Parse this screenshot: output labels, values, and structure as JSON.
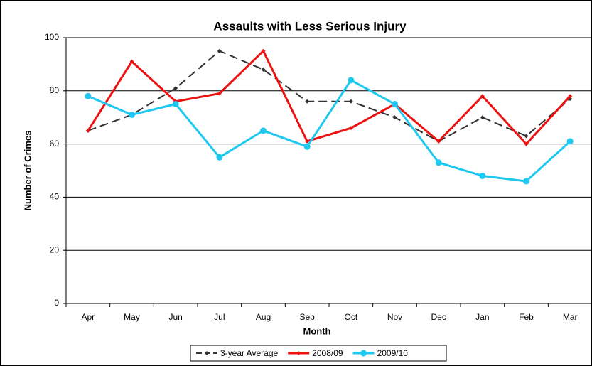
{
  "chart_data": {
    "type": "line",
    "title": "Assaults with Less Serious Injury",
    "x_label": "Month",
    "y_label": "Number of Crimes",
    "categories": [
      "Apr",
      "May",
      "Jun",
      "Jul",
      "Aug",
      "Sep",
      "Oct",
      "Nov",
      "Dec",
      "Jan",
      "Feb",
      "Mar"
    ],
    "series": [
      {
        "name": "3-year Average",
        "color": "#333333",
        "dashed": true,
        "marker": "diamond",
        "values": [
          65,
          71,
          81,
          95,
          88,
          76,
          76,
          70,
          61,
          70,
          63,
          77
        ]
      },
      {
        "name": "2008/09",
        "color": "#ee1111",
        "dashed": false,
        "marker": "diamond",
        "values": [
          65,
          91,
          76,
          79,
          95,
          61,
          66,
          75,
          61,
          78,
          60,
          78
        ]
      },
      {
        "name": "2009/10",
        "color": "#1ec8f0",
        "dashed": false,
        "marker": "circle",
        "values": [
          78,
          71,
          75,
          55,
          65,
          59,
          84,
          75,
          53,
          48,
          46,
          61
        ]
      }
    ],
    "ylim": [
      0,
      100
    ],
    "yticks": [
      0,
      20,
      40,
      60,
      80,
      100
    ],
    "grid": true,
    "legend": "bottom"
  }
}
